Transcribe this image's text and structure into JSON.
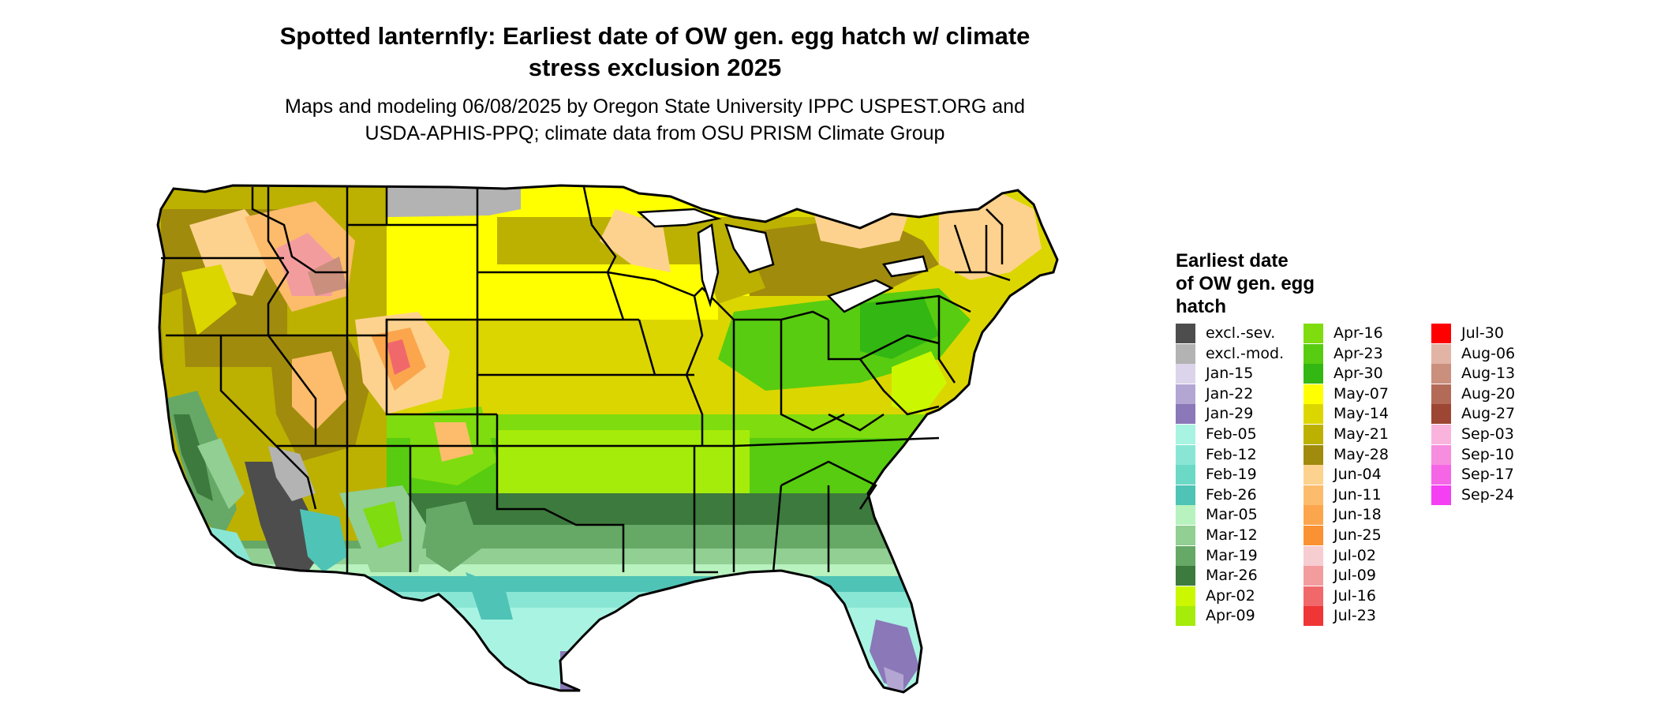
{
  "title": {
    "line1": "Spotted lanternfly: Earliest date of OW gen. egg hatch w/ climate",
    "line2": "stress exclusion 2025"
  },
  "subtitle": {
    "line1": "Maps and modeling 06/08/2025 by Oregon State University IPPC USPEST.ORG and",
    "line2": "USDA-APHIS-PPQ; climate data from OSU PRISM Climate Group"
  },
  "legend": {
    "title_lines": [
      "Earliest date",
      "of OW gen. egg",
      "hatch"
    ],
    "items": [
      {
        "label": "excl.-sev.",
        "color": "#4d4d4d"
      },
      {
        "label": "excl.-mod.",
        "color": "#b3b3b3"
      },
      {
        "label": "Jan-15",
        "color": "#dcd4ea"
      },
      {
        "label": "Jan-22",
        "color": "#b3a6d3"
      },
      {
        "label": "Jan-29",
        "color": "#8a78b8"
      },
      {
        "label": "Feb-05",
        "color": "#a9f3e2"
      },
      {
        "label": "Feb-12",
        "color": "#8ae6d4"
      },
      {
        "label": "Feb-19",
        "color": "#6cd9c6"
      },
      {
        "label": "Feb-26",
        "color": "#4fc4b6"
      },
      {
        "label": "Mar-05",
        "color": "#b8f2bf"
      },
      {
        "label": "Mar-12",
        "color": "#91cf93"
      },
      {
        "label": "Mar-19",
        "color": "#66a866"
      },
      {
        "label": "Mar-26",
        "color": "#3d7a3d"
      },
      {
        "label": "Apr-02",
        "color": "#cbf700"
      },
      {
        "label": "Apr-09",
        "color": "#a6ec0b"
      },
      {
        "label": "Apr-16",
        "color": "#7fdc0e"
      },
      {
        "label": "Apr-23",
        "color": "#58cc10"
      },
      {
        "label": "Apr-30",
        "color": "#33b712"
      },
      {
        "label": "May-07",
        "color": "#ffff00"
      },
      {
        "label": "May-14",
        "color": "#dcd600"
      },
      {
        "label": "May-21",
        "color": "#bcb100"
      },
      {
        "label": "May-28",
        "color": "#a08b0c"
      },
      {
        "label": "Jun-04",
        "color": "#fdd28e"
      },
      {
        "label": "Jun-11",
        "color": "#fcbc6b"
      },
      {
        "label": "Jun-18",
        "color": "#fba64d"
      },
      {
        "label": "Jun-25",
        "color": "#fa9132"
      },
      {
        "label": "Jul-02",
        "color": "#f6cdd1"
      },
      {
        "label": "Jul-09",
        "color": "#f39c9e"
      },
      {
        "label": "Jul-16",
        "color": "#f1686b"
      },
      {
        "label": "Jul-23",
        "color": "#ef3535"
      },
      {
        "label": "Jul-30",
        "color": "#ff0000"
      },
      {
        "label": "Aug-06",
        "color": "#e2b4a6"
      },
      {
        "label": "Aug-13",
        "color": "#cb8f7d"
      },
      {
        "label": "Aug-20",
        "color": "#b36b57"
      },
      {
        "label": "Aug-27",
        "color": "#9c4633"
      },
      {
        "label": "Sep-03",
        "color": "#f9b3dd"
      },
      {
        "label": "Sep-10",
        "color": "#f78ddf"
      },
      {
        "label": "Sep-17",
        "color": "#f566e7"
      },
      {
        "label": "Sep-24",
        "color": "#f43ff3"
      }
    ]
  }
}
